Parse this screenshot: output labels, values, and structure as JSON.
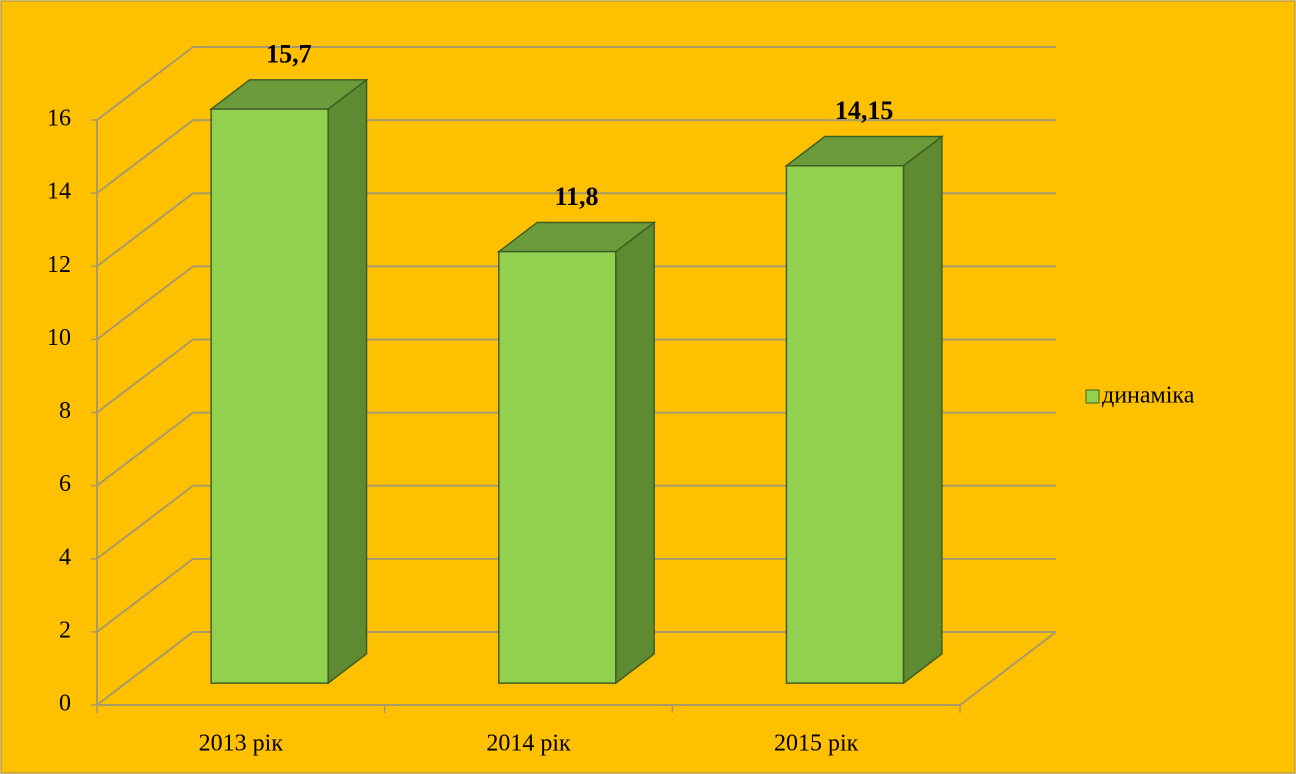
{
  "chart_data": {
    "type": "bar3d",
    "categories": [
      "2013 рік",
      "2014 рік",
      "2015 рік"
    ],
    "series": [
      {
        "name": "динаміка",
        "color": "#92d050",
        "values": [
          15.7,
          11.8,
          14.15
        ],
        "value_labels": [
          "15,7",
          "11,8",
          "14,15"
        ]
      }
    ],
    "ylim": [
      0,
      16
    ],
    "yticks": [
      0,
      2,
      4,
      6,
      8,
      10,
      12,
      14,
      16
    ],
    "grid": true,
    "legend": "right"
  }
}
